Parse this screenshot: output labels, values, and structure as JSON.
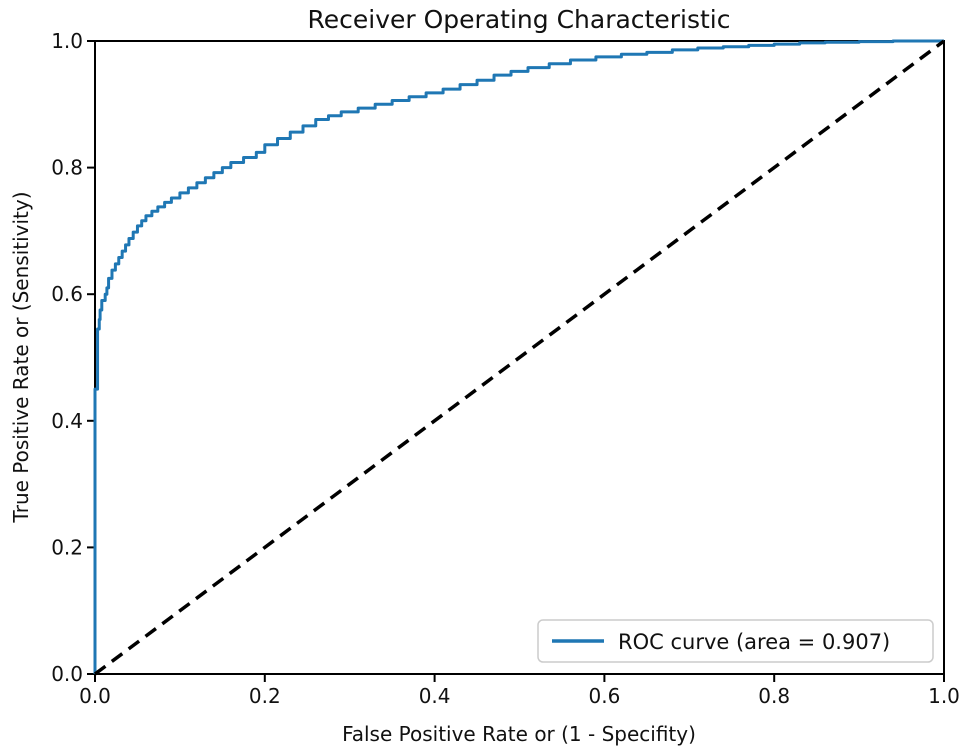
{
  "figure": {
    "background": "#ffffff",
    "text_color": "#111111",
    "spine_color": "#000000"
  },
  "chart_data": {
    "type": "line",
    "title": "Receiver Operating Characteristic",
    "xlabel": "False Positive Rate or (1 - Specifity)",
    "ylabel": "True Positive Rate or (Sensitivity)",
    "xlim": [
      0.0,
      1.0
    ],
    "ylim": [
      0.0,
      1.0
    ],
    "xticks": [
      "0.0",
      "0.2",
      "0.4",
      "0.6",
      "0.8",
      "1.0"
    ],
    "yticks": [
      "0.0",
      "0.2",
      "0.4",
      "0.6",
      "0.8",
      "1.0"
    ],
    "grid": false,
    "auc": 0.907,
    "legend": {
      "position": "lower right",
      "entries": [
        {
          "label": "ROC curve (area = 0.907)",
          "color": "#1f77b4",
          "style": "solid"
        }
      ]
    },
    "series": [
      {
        "name": "ROC curve",
        "color": "#1f77b4",
        "line_style": "solid",
        "draw": "steps",
        "points": [
          [
            0.0,
            0.0
          ],
          [
            0.0,
            0.41
          ],
          [
            0.003,
            0.45
          ],
          [
            0.003,
            0.52
          ],
          [
            0.005,
            0.545
          ],
          [
            0.006,
            0.56
          ],
          [
            0.008,
            0.575
          ],
          [
            0.012,
            0.59
          ],
          [
            0.014,
            0.6
          ],
          [
            0.016,
            0.61
          ],
          [
            0.02,
            0.625
          ],
          [
            0.024,
            0.638
          ],
          [
            0.028,
            0.648
          ],
          [
            0.032,
            0.658
          ],
          [
            0.036,
            0.668
          ],
          [
            0.04,
            0.678
          ],
          [
            0.045,
            0.688
          ],
          [
            0.05,
            0.698
          ],
          [
            0.055,
            0.708
          ],
          [
            0.06,
            0.716
          ],
          [
            0.067,
            0.724
          ],
          [
            0.074,
            0.731
          ],
          [
            0.082,
            0.738
          ],
          [
            0.09,
            0.745
          ],
          [
            0.1,
            0.752
          ],
          [
            0.11,
            0.76
          ],
          [
            0.12,
            0.768
          ],
          [
            0.13,
            0.776
          ],
          [
            0.14,
            0.784
          ],
          [
            0.15,
            0.792
          ],
          [
            0.16,
            0.8
          ],
          [
            0.175,
            0.808
          ],
          [
            0.19,
            0.816
          ],
          [
            0.2,
            0.824
          ],
          [
            0.215,
            0.836
          ],
          [
            0.23,
            0.846
          ],
          [
            0.245,
            0.856
          ],
          [
            0.26,
            0.866
          ],
          [
            0.275,
            0.876
          ],
          [
            0.29,
            0.882
          ],
          [
            0.31,
            0.888
          ],
          [
            0.33,
            0.894
          ],
          [
            0.35,
            0.9
          ],
          [
            0.37,
            0.906
          ],
          [
            0.39,
            0.912
          ],
          [
            0.41,
            0.918
          ],
          [
            0.43,
            0.924
          ],
          [
            0.45,
            0.931
          ],
          [
            0.47,
            0.938
          ],
          [
            0.49,
            0.946
          ],
          [
            0.51,
            0.952
          ],
          [
            0.535,
            0.958
          ],
          [
            0.56,
            0.964
          ],
          [
            0.59,
            0.97
          ],
          [
            0.62,
            0.975
          ],
          [
            0.65,
            0.979
          ],
          [
            0.68,
            0.982
          ],
          [
            0.71,
            0.986
          ],
          [
            0.74,
            0.989
          ],
          [
            0.77,
            0.991
          ],
          [
            0.8,
            0.993
          ],
          [
            0.83,
            0.995
          ],
          [
            0.86,
            0.997
          ],
          [
            0.9,
            0.998
          ],
          [
            0.94,
            0.999
          ],
          [
            1.0,
            1.0
          ]
        ]
      },
      {
        "name": "chance diagonal",
        "color": "#000000",
        "line_style": "dashed",
        "draw": "linear",
        "points": [
          [
            0.0,
            0.0
          ],
          [
            1.0,
            1.0
          ]
        ]
      }
    ]
  }
}
